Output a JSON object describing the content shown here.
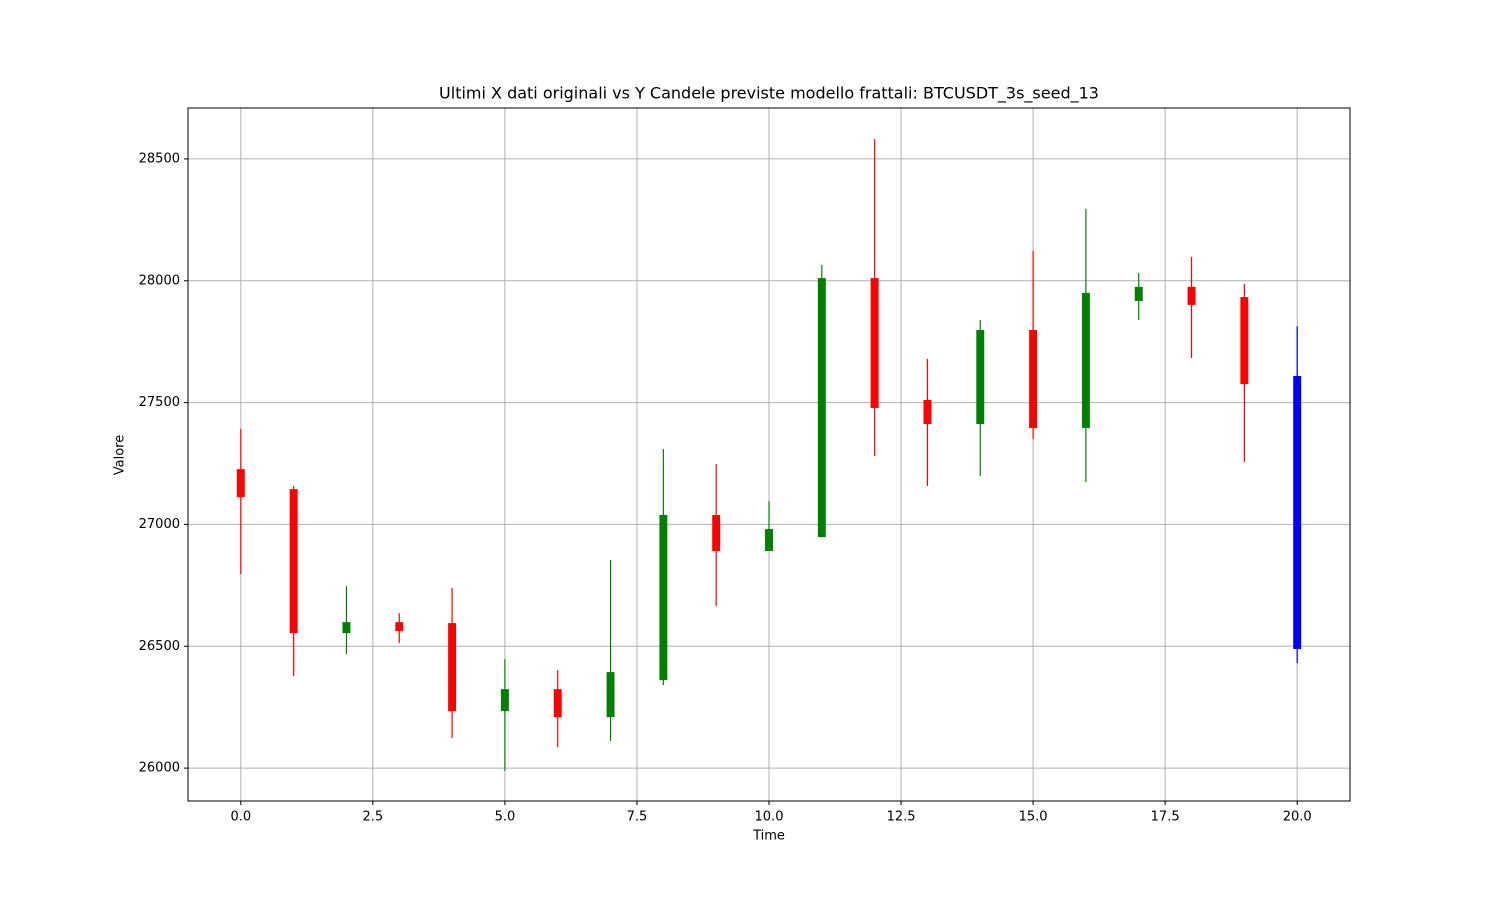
{
  "chart_data": {
    "type": "candlestick",
    "title": "Ultimi X dati originali vs Y Candele previste modello frattali: BTCUSDT_3s_seed_13",
    "x_label": "Time",
    "y_label": "Valore",
    "x": [
      0,
      1,
      2,
      3,
      4,
      5,
      6,
      7,
      8,
      9,
      10,
      11,
      12,
      13,
      14,
      15,
      16,
      17,
      18,
      19,
      20
    ],
    "open": [
      27227,
      27145,
      26554,
      26599,
      26595,
      26234,
      26324,
      26209,
      26361,
      27039,
      26891,
      26948,
      28011,
      27511,
      27412,
      27798,
      27396,
      27917,
      27975,
      27933,
      27609
    ],
    "high": [
      27392,
      27158,
      26747,
      26636,
      26739,
      26447,
      26402,
      26854,
      27309,
      27248,
      27096,
      28065,
      28582,
      27679,
      27839,
      28122,
      28295,
      28032,
      28098,
      27987,
      27814
    ],
    "low": [
      26796,
      26378,
      26468,
      26513,
      26123,
      25988,
      26086,
      26111,
      26341,
      26665,
      26891,
      26948,
      27281,
      27158,
      27199,
      27351,
      27174,
      27839,
      27683,
      27256,
      26431
    ],
    "close": [
      27112,
      26554,
      26599,
      26562,
      26234,
      26324,
      26209,
      26394,
      27039,
      26891,
      26981,
      28011,
      27478,
      27412,
      27798,
      27396,
      27950,
      27975,
      27901,
      27576,
      26489
    ],
    "colors": [
      "red",
      "red",
      "green",
      "red",
      "red",
      "green",
      "red",
      "green",
      "green",
      "red",
      "green",
      "green",
      "red",
      "red",
      "green",
      "red",
      "green",
      "green",
      "red",
      "red",
      "blue"
    ],
    "xlim": [
      -1,
      21
    ],
    "xticks": [
      {
        "value": 0,
        "label": "0.0"
      },
      {
        "value": 2.5,
        "label": "2.5"
      },
      {
        "value": 5,
        "label": "5.0"
      },
      {
        "value": 7.5,
        "label": "7.5"
      },
      {
        "value": 10,
        "label": "10.0"
      },
      {
        "value": 12.5,
        "label": "12.5"
      },
      {
        "value": 15,
        "label": "15.0"
      },
      {
        "value": 17.5,
        "label": "17.5"
      },
      {
        "value": 20,
        "label": "20.0"
      }
    ],
    "ylim": [
      25865,
      28709
    ],
    "yticks": [
      26000,
      26500,
      27000,
      27500,
      28000,
      28500
    ],
    "grid": true
  }
}
